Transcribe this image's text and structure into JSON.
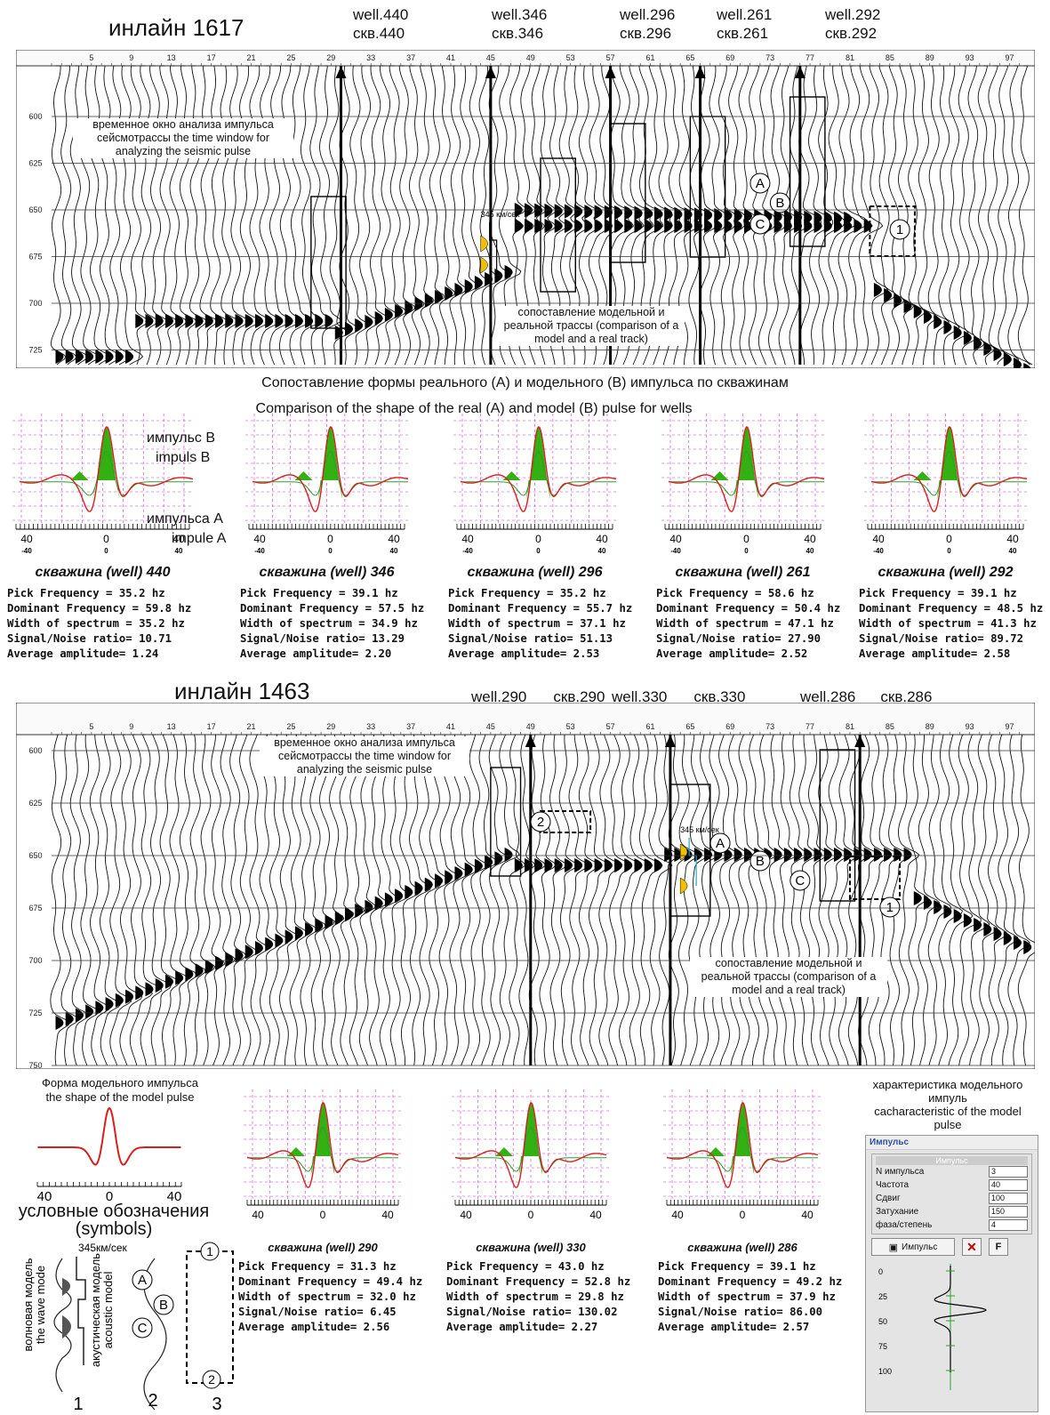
{
  "inline1": {
    "title": "инлайн 1617",
    "wells": [
      {
        "en": "well.440",
        "ru": "скв.440"
      },
      {
        "en": "well.346",
        "ru": "скв.346"
      },
      {
        "en": "well.296",
        "ru": "скв.296"
      },
      {
        "en": "well.261",
        "ru": "скв.261"
      },
      {
        "en": "well.292",
        "ru": "скв.292"
      }
    ],
    "trace_ticks": [
      "5",
      "9",
      "13",
      "17",
      "21",
      "25",
      "29",
      "33",
      "37",
      "41",
      "45",
      "49",
      "53",
      "57",
      "61",
      "65",
      "69",
      "73",
      "77",
      "81",
      "85",
      "89",
      "93",
      "97"
    ],
    "time_ticks": [
      "600",
      "625",
      "650",
      "675",
      "700",
      "725"
    ],
    "window_note": "временное окно анализа импульса сейсмотрассы the time window for analyzing the seismic pulse",
    "comparison_note": "сопоставление модельной и реальной трассы (comparison of a model and a real track)",
    "velocity_label": "345 км/сек",
    "markers": [
      "A",
      "B",
      "C",
      "1"
    ]
  },
  "comparison_title_ru": "Сопоставление формы реального (А) и модельного (В) импульса по скважинам",
  "comparison_title_en": "Comparison of the shape of the real (A) and model (B) pulse for wells",
  "pulse_labels": {
    "b_ru": "импульс В",
    "b_en": "impuls B",
    "a_ru": "импульса А",
    "a_en": "impule A"
  },
  "axis": {
    "left": "40",
    "center": "0",
    "right": "40",
    "sub_left": "-40",
    "sub_center": "0",
    "sub_right": "40"
  },
  "wells_row1": [
    {
      "caption": "скважина (well) 440",
      "stats": "Pick Frequency = 35.2 hz\nDominant Frequency = 59.8 hz\nWidth of spectrum = 35.2 hz\nSignal/Noise ratio= 10.71\nAverage amplitude= 1.24"
    },
    {
      "caption": "скважина (well) 346",
      "stats": "Pick Frequency = 39.1 hz\nDominant Frequency = 57.5 hz\nWidth of spectrum = 34.9 hz\nSignal/Noise ratio= 13.29\nAverage amplitude= 2.20"
    },
    {
      "caption": "скважина (well) 296",
      "stats": "Pick Frequency = 35.2 hz\nDominant Frequency = 55.7 hz\nWidth of spectrum = 37.1 hz\nSignal/Noise ratio= 51.13\nAverage amplitude= 2.53"
    },
    {
      "caption": "скважина (well) 261",
      "stats": "Pick Frequency = 58.6 hz\nDominant Frequency = 50.4 hz\nWidth of spectrum = 47.1 hz\nSignal/Noise ratio= 27.90\nAverage amplitude= 2.52"
    },
    {
      "caption": "скважина (well) 292",
      "stats": "Pick Frequency = 39.1 hz\nDominant Frequency = 48.5 hz\nWidth of spectrum = 41.3 hz\nSignal/Noise ratio= 89.72\nAverage amplitude= 2.58"
    }
  ],
  "inline2": {
    "title": "инлайн 1463",
    "wells": [
      {
        "en": "well.290",
        "ru": "скв.290"
      },
      {
        "en": "well.330",
        "ru": "скв.330"
      },
      {
        "en": "well.286",
        "ru": "скв.286"
      }
    ],
    "time_ticks": [
      "600",
      "625",
      "650",
      "675",
      "700",
      "725",
      "750"
    ],
    "window_note": "временное окно анализа импульса сейсмотрассы the time window for analyzing the seismic pulse",
    "comparison_note": "сопоставление модельной и реальной трассы (comparison of a model and a real track)",
    "velocity_label": "345 км/сек",
    "markers": [
      "A",
      "B",
      "C",
      "1",
      "2"
    ]
  },
  "model_pulse": {
    "title_ru": "Форма модельного импульса",
    "title_en": "the shape of the model pulse"
  },
  "legend": {
    "title_ru": "условные обозначения",
    "title_en": "(symbols)",
    "wave_ru": "волновая модель",
    "wave_en": "the wave mode",
    "acoustic_ru": "акустическая модель",
    "acoustic_en": "acoustic model",
    "velocity": "345км/сек",
    "numbers": [
      "1",
      "2",
      "3"
    ],
    "letters": [
      "A",
      "B",
      "C"
    ],
    "box_numbers": [
      "1",
      "2"
    ]
  },
  "wells_row2": [
    {
      "caption": "скважина (well) 290",
      "stats": "Pick Frequency = 31.3 hz\nDominant Frequency = 49.4 hz\nWidth of spectrum = 32.0 hz\nSignal/Noise ratio= 6.45\nAverage amplitude= 2.56"
    },
    {
      "caption": "скважина (well) 330",
      "stats": "Pick Frequency = 43.0 hz\nDominant Frequency = 52.8 hz\nWidth of spectrum = 29.8 hz\nSignal/Noise ratio= 130.02\nAverage amplitude= 2.27"
    },
    {
      "caption": "скважина (well) 286",
      "stats": "Pick Frequency = 39.1 hz\nDominant Frequency = 49.2 hz\nWidth of spectrum = 37.9 hz\nSignal/Noise ratio= 86.00\nAverage amplitude= 2.57"
    }
  ],
  "characteristics": {
    "title_ru": "характеристика модельного импуль",
    "title_en": "cacharacteristic of the model pulse",
    "window_title": "Импульс",
    "group_title": "Импульс",
    "fields": [
      {
        "label": "N импульса",
        "value": "3"
      },
      {
        "label": "Частота",
        "value": "40"
      },
      {
        "label": "Сдвиг",
        "value": "100"
      },
      {
        "label": "Затухание",
        "value": "150"
      },
      {
        "label": "фаза/степень",
        "value": "4"
      }
    ],
    "button_label": "Импульс",
    "f_label": "F",
    "ticks": [
      "0",
      "25",
      "50",
      "75",
      "100"
    ]
  },
  "colors": {
    "model": "#d62020",
    "real": "#2aa02a",
    "fill": "#33b012",
    "grid": "#cc33cc",
    "highlight": "#f0c000",
    "cyan": "#2aa8c8"
  }
}
